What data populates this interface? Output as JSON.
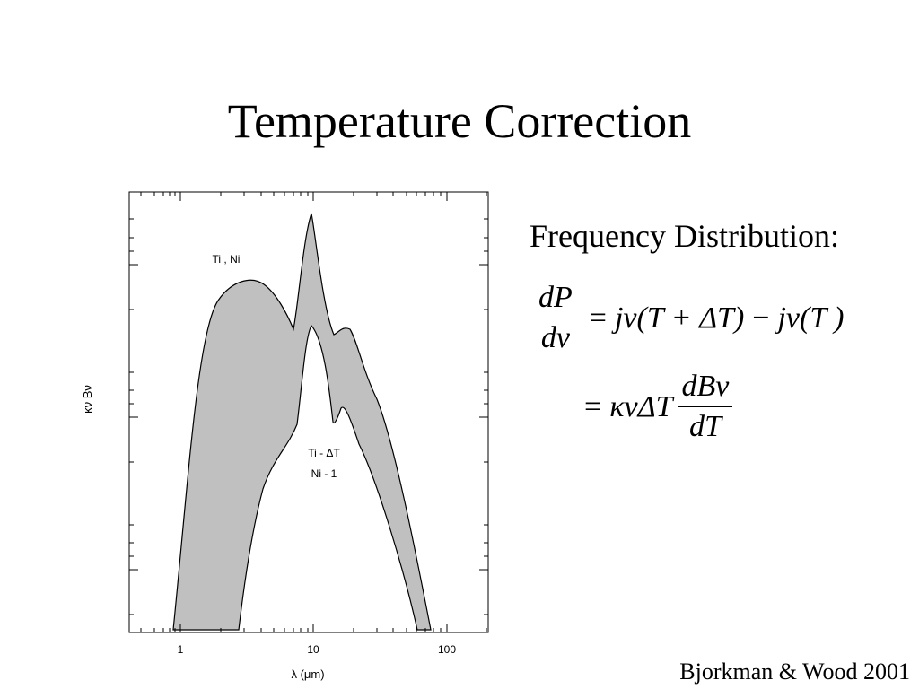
{
  "slide": {
    "title": "Temperature Correction",
    "citation": "Bjorkman & Wood 2001"
  },
  "plot": {
    "xlabel": "λ (μm)",
    "ylabel": "κν Bν",
    "x_ticks": [
      "1",
      "10",
      "100"
    ],
    "label_upper": "Ti , Ni",
    "label_lower_1": "Ti - ΔT",
    "label_lower_2": "Ni - 1",
    "fill_color": "#c0c0c0"
  },
  "equations": {
    "heading": "Frequency Distribution:",
    "eq1_num": "dP",
    "eq1_den": "dν",
    "eq1_rhs_j1": "jν",
    "eq1_rhs_arg1": "(T + ΔT)",
    "eq1_rhs_j2": "jν",
    "eq1_rhs_arg2": "(T )",
    "eq2_kappa": "κν",
    "eq2_dT": "ΔT",
    "eq2_num": "dBν",
    "eq2_den": "dT"
  }
}
